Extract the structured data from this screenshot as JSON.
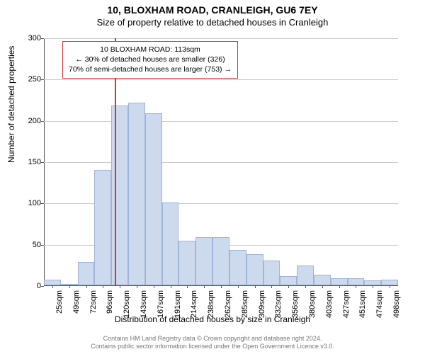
{
  "title_line1": "10, BLOXHAM ROAD, CRANLEIGH, GU6 7EY",
  "title_line2": "Size of property relative to detached houses in Cranleigh",
  "y_axis_label": "Number of detached properties",
  "x_axis_label": "Distribution of detached houses by size in Cranleigh",
  "chart": {
    "ylim": [
      0,
      300
    ],
    "ytick_step": 50,
    "y_ticks": [
      0,
      50,
      100,
      150,
      200,
      250,
      300
    ],
    "x_categories": [
      "25sqm",
      "49sqm",
      "72sqm",
      "96sqm",
      "120sqm",
      "143sqm",
      "167sqm",
      "191sqm",
      "214sqm",
      "238sqm",
      "262sqm",
      "285sqm",
      "309sqm",
      "332sqm",
      "356sqm",
      "380sqm",
      "403sqm",
      "427sqm",
      "451sqm",
      "474sqm",
      "498sqm"
    ],
    "values": [
      7,
      1,
      28,
      140,
      218,
      221,
      208,
      100,
      54,
      58,
      58,
      43,
      38,
      30,
      11,
      24,
      13,
      9,
      9,
      6,
      7
    ],
    "bar_fill": "#cdd9ed",
    "bar_stroke": "#9fb4d8",
    "grid_color": "#cccccc",
    "axis_color": "#555555",
    "marker_x_value": 113,
    "marker_color": "#d33333",
    "label_fontsize": 12,
    "tick_fontsize": 11
  },
  "info_box": {
    "line1": "10 BLOXHAM ROAD: 113sqm",
    "line2": "← 30% of detached houses are smaller (326)",
    "line3": "70% of semi-detached houses are larger (753) →"
  },
  "footer_line1": "Contains HM Land Registry data © Crown copyright and database right 2024.",
  "footer_line2": "Contains public sector information licensed under the Open Government Licence v3.0."
}
